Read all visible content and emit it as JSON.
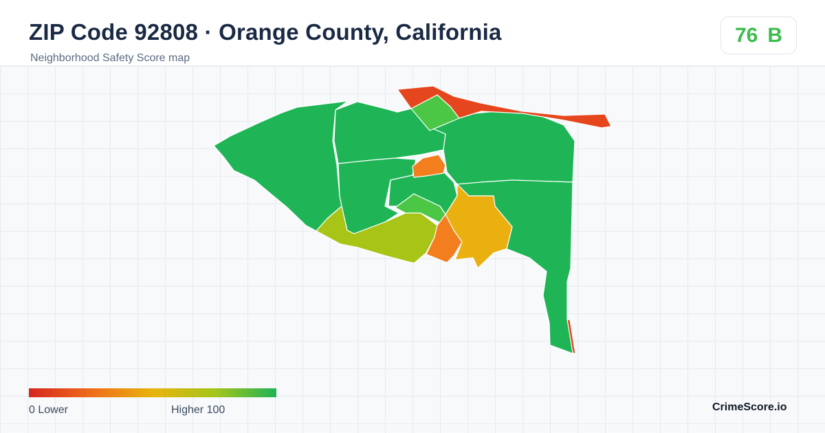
{
  "header": {
    "title": "ZIP Code 92808 · Orange County, California",
    "subtitle": "Neighborhood Safety Score map"
  },
  "score": {
    "value": "76",
    "grade": "B",
    "color": "#3cbc4e"
  },
  "legend": {
    "low_label": "0  Lower",
    "high_label": "Higher  100",
    "min": 0,
    "max": 100,
    "colors": [
      "#d7261e",
      "#ef6b1a",
      "#e8b40e",
      "#a6c51a",
      "#1fb356"
    ]
  },
  "brand": "CrimeScore.io",
  "map": {
    "colors": {
      "high": "#1fb556",
      "light_green": "#4cc645",
      "yellow_green": "#a8c417",
      "amber": "#e9b00f",
      "orange": "#f27e1e",
      "red_orange": "#e6461d"
    }
  }
}
